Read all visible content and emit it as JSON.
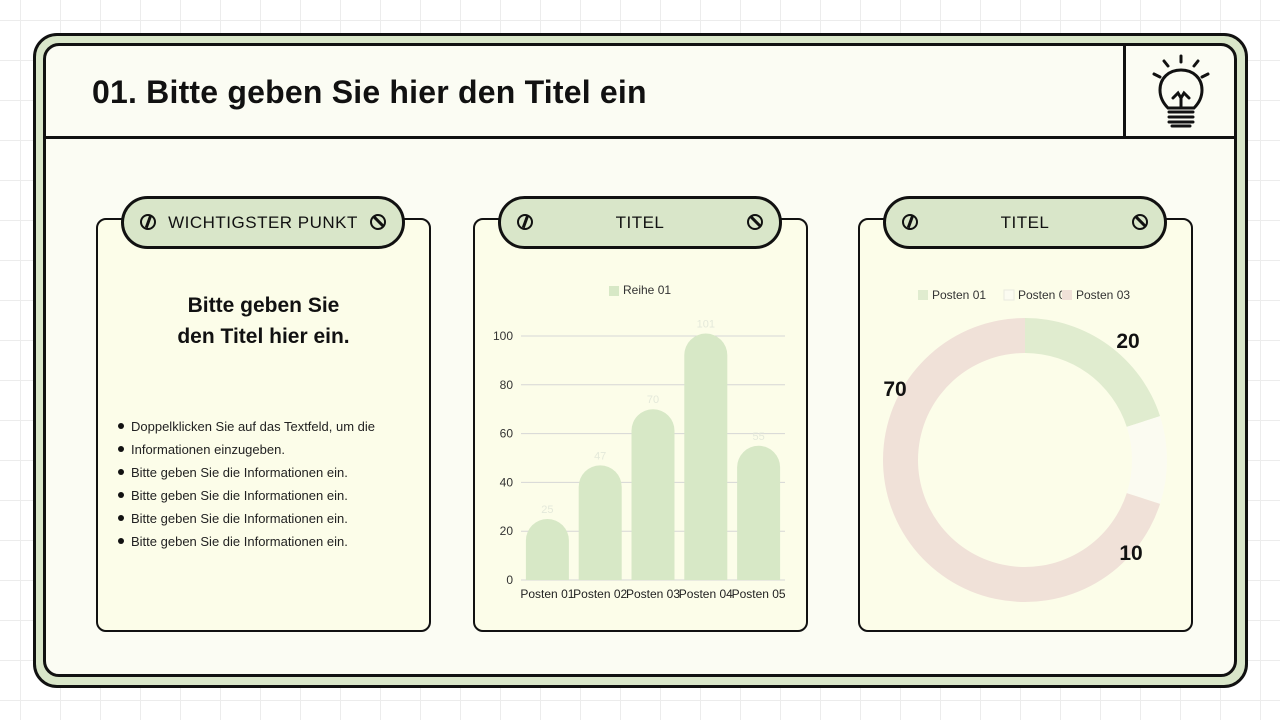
{
  "slide": {
    "title": "01. Bitte geben Sie hier den Titel ein",
    "icon": "lightbulb-icon"
  },
  "cards": [
    {
      "heading": "WICHTIGSTER PUNKT",
      "title_line1": "Bitte geben Sie",
      "title_line2": "den Titel hier ein.",
      "bullets": [
        "Doppelklicken Sie auf das Textfeld, um die",
        "Informationen einzugeben.",
        "Bitte geben Sie die Informationen ein.",
        "Bitte geben Sie die Informationen ein.",
        "Bitte geben Sie die Informationen ein.",
        "Bitte geben Sie die Informationen ein."
      ]
    },
    {
      "heading": "TITEL"
    },
    {
      "heading": "TITEL"
    }
  ],
  "chart_data": [
    {
      "type": "bar",
      "categories": [
        "Posten 01",
        "Posten 02",
        "Posten 03",
        "Posten 04",
        "Posten 05"
      ],
      "series": [
        {
          "name": "Reihe 01",
          "values": [
            25,
            47,
            70,
            101,
            55
          ]
        }
      ],
      "ylim": [
        0,
        100
      ],
      "yticks": [
        0,
        20,
        40,
        60,
        80,
        100
      ],
      "legend": "top",
      "grid": true,
      "colors": {
        "bar": "#d7e8c6",
        "label": "#e4e9da"
      }
    },
    {
      "type": "pie",
      "labels": [
        "Posten 01",
        "Posten 02",
        "Posten 03"
      ],
      "values": [
        20,
        10,
        70
      ],
      "legend": "top",
      "colors": [
        "#e0eccf",
        "#fbfbf1",
        "#f0e1d8"
      ]
    }
  ]
}
